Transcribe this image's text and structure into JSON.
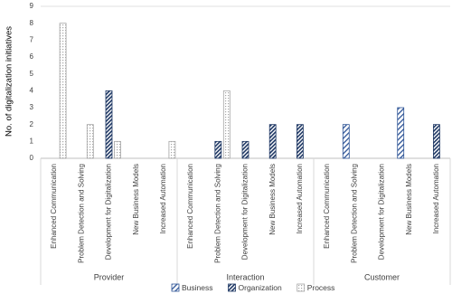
{
  "chart_data": {
    "type": "bar",
    "y_label": "No. of digitalization initiatives",
    "groups": [
      {
        "name": "Provider",
        "categories": [
          "Enhanced Communication",
          "Problem Detection and Solving",
          "Development for Digitalization",
          "New Business Models",
          "Increased Automation"
        ]
      },
      {
        "name": "Interaction",
        "categories": [
          "Enhanced Communication",
          "Problem Detection and Solving",
          "Development for Digitalization",
          "New Business Models",
          "Increased Automation"
        ]
      },
      {
        "name": "Customer",
        "categories": [
          "Enhanced Communication",
          "Problem Detection and Solving",
          "Development for Digitalization",
          "New Business Models",
          "Increased Automation"
        ]
      }
    ],
    "series": [
      {
        "name": "Business",
        "color": "#2f5597",
        "hatch": "sparse",
        "values": [
          0,
          0,
          0,
          0,
          0,
          0,
          0,
          0,
          0,
          0,
          0,
          2,
          0,
          3,
          0
        ]
      },
      {
        "name": "Organization",
        "color": "#1f3864",
        "hatch": "dense",
        "values": [
          0,
          0,
          4,
          0,
          0,
          0,
          1,
          1,
          2,
          2,
          0,
          0,
          0,
          0,
          2
        ]
      },
      {
        "name": "Process",
        "color": "#a6a6a6",
        "hatch": "dots",
        "values": [
          8,
          2,
          1,
          0,
          1,
          0,
          4,
          0,
          0,
          0,
          0,
          0,
          0,
          0,
          0
        ]
      }
    ],
    "ylim": [
      0,
      9
    ],
    "yticks": [
      0,
      1,
      2,
      3,
      4,
      5,
      6,
      7,
      8,
      9
    ],
    "grid": false
  }
}
